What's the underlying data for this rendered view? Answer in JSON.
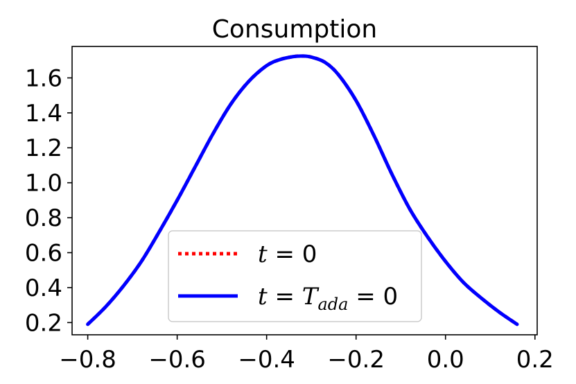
{
  "chart_data": {
    "type": "line",
    "title": "Consumption",
    "xlabel": "",
    "ylabel": "",
    "xlim": [
      -0.835,
      0.205
    ],
    "ylim": [
      0.13,
      1.78
    ],
    "grid": false,
    "xticks": [
      -0.8,
      -0.6,
      -0.4,
      -0.2,
      0.0,
      0.2
    ],
    "xtick_labels": [
      "−0.8",
      "−0.6",
      "−0.4",
      "−0.2",
      "0.0",
      "0.2"
    ],
    "yticks": [
      0.2,
      0.4,
      0.6,
      0.8,
      1.0,
      1.2,
      1.4,
      1.6
    ],
    "ytick_labels": [
      "0.2",
      "0.4",
      "0.6",
      "0.8",
      "1.0",
      "1.2",
      "1.4",
      "1.6"
    ],
    "legend": {
      "location": "lower center",
      "entries": [
        {
          "series": 0,
          "label_parts": [
            {
              "t": "t",
              "style": "italic"
            },
            {
              "t": " = 0",
              "style": "upright"
            }
          ]
        },
        {
          "series": 1,
          "label_parts": [
            {
              "t": "t",
              "style": "italic"
            },
            {
              "t": " = ",
              "style": "upright"
            },
            {
              "t": "T",
              "style": "italic"
            },
            {
              "t": "ada",
              "style": "sub-italic"
            },
            {
              "t": " = 0",
              "style": "upright"
            }
          ]
        }
      ]
    },
    "series": [
      {
        "name": "t = 0",
        "color": "#ff0000",
        "style": "dotted",
        "x": [
          -0.8,
          -0.76,
          -0.72,
          -0.68,
          -0.64,
          -0.6,
          -0.56,
          -0.52,
          -0.48,
          -0.44,
          -0.4,
          -0.37,
          -0.34,
          -0.32,
          -0.3,
          -0.27,
          -0.24,
          -0.2,
          -0.16,
          -0.12,
          -0.08,
          -0.04,
          0.0,
          0.04,
          0.08,
          0.12,
          0.16
        ],
        "y": [
          0.19,
          0.29,
          0.41,
          0.55,
          0.72,
          0.9,
          1.09,
          1.28,
          1.45,
          1.58,
          1.67,
          1.705,
          1.722,
          1.725,
          1.719,
          1.69,
          1.62,
          1.47,
          1.27,
          1.05,
          0.85,
          0.69,
          0.55,
          0.43,
          0.34,
          0.26,
          0.19
        ]
      },
      {
        "name": "t = T_ada = 0",
        "color": "#0000ff",
        "style": "solid",
        "x": [
          -0.8,
          -0.76,
          -0.72,
          -0.68,
          -0.64,
          -0.6,
          -0.56,
          -0.52,
          -0.48,
          -0.44,
          -0.4,
          -0.37,
          -0.34,
          -0.32,
          -0.3,
          -0.27,
          -0.24,
          -0.2,
          -0.16,
          -0.12,
          -0.08,
          -0.04,
          0.0,
          0.04,
          0.08,
          0.12,
          0.16
        ],
        "y": [
          0.19,
          0.29,
          0.41,
          0.55,
          0.72,
          0.9,
          1.09,
          1.28,
          1.45,
          1.58,
          1.67,
          1.705,
          1.722,
          1.725,
          1.719,
          1.69,
          1.62,
          1.47,
          1.27,
          1.05,
          0.85,
          0.69,
          0.55,
          0.43,
          0.34,
          0.26,
          0.19
        ]
      }
    ]
  }
}
